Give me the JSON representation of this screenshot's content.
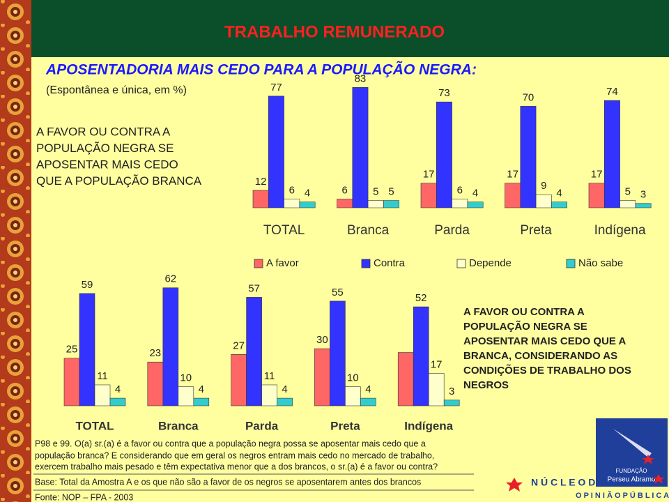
{
  "header": {
    "title": "TRABALHO REMUNERADO",
    "subtitle": "APOSENTADORIA MAIS CEDO PARA A POPULAÇÃO NEGRA:",
    "note": "(Espontânea e única, em %)"
  },
  "chart_data": [
    {
      "type": "bar",
      "question": [
        "A FAVOR OU CONTRA A",
        "POPULAÇÃO NEGRA SE",
        "APOSENTAR MAIS  CEDO",
        "QUE A POPULAÇÃO BRANCA"
      ],
      "categories": [
        "TOTAL",
        "Branca",
        "Parda",
        "Preta",
        "Indígena"
      ],
      "series": [
        {
          "name": "A favor",
          "color": "#ff6666",
          "values": [
            12,
            6,
            17,
            17,
            17
          ]
        },
        {
          "name": "Contra",
          "color": "#3333ff",
          "values": [
            77,
            83,
            73,
            70,
            74
          ]
        },
        {
          "name": "Depende",
          "color": "#ffffcc",
          "values": [
            6,
            5,
            6,
            9,
            5
          ]
        },
        {
          "name": "Não sabe",
          "color": "#33cccc",
          "values": [
            4,
            5,
            4,
            4,
            3
          ]
        }
      ],
      "ylim": [
        0,
        100
      ],
      "legend": true
    },
    {
      "type": "bar",
      "question": [
        "A FAVOR OU CONTRA A",
        "POPULAÇÃO NEGRA SE",
        "APOSENTAR MAIS  CEDO QUE A",
        "BRANCA, CONSIDERANDO AS",
        "CONDIÇÕES DE TRABALHO DOS",
        "NEGROS"
      ],
      "categories": [
        "TOTAL",
        "Branca",
        "Parda",
        "Preta",
        "Indígena"
      ],
      "series": [
        {
          "name": "A favor",
          "color": "#ff6666",
          "values": [
            25,
            23,
            27,
            30,
            28
          ],
          "value_labels": [
            "25",
            "23",
            "27",
            "30",
            null
          ]
        },
        {
          "name": "Contra",
          "color": "#3333ff",
          "values": [
            59,
            62,
            57,
            55,
            52
          ]
        },
        {
          "name": "Depende",
          "color": "#ffffcc",
          "values": [
            11,
            10,
            11,
            10,
            17
          ]
        },
        {
          "name": "Não sabe",
          "color": "#33cccc",
          "values": [
            4,
            4,
            4,
            4,
            3
          ]
        }
      ],
      "ylim": [
        0,
        100
      ],
      "legend": false
    }
  ],
  "footnotes": [
    "P98 e 99. O(a) sr.(a) é a favor ou contra que a população negra possa se aposentar  mais cedo que a",
    "população branca? E considerando que em geral os negros entram mais cedo no mercado de trabalho,",
    "exercem trabalho mais pesado e têm expectativa menor  que a dos brancos, o sr.(a) é a favor ou contra?",
    "Base: Total da Amostra A  e os que não são a favor de os negros se aposentarem antes dos brancos",
    "Fonte:  NOP – FPA - 2003"
  ],
  "logo": {
    "foundation": "FUNDAÇÃO",
    "name": "Perseu Abramo",
    "line1": "N Ú C L E O   D E",
    "line2": "O P I N I Ã O   P Ú B L I C A"
  }
}
